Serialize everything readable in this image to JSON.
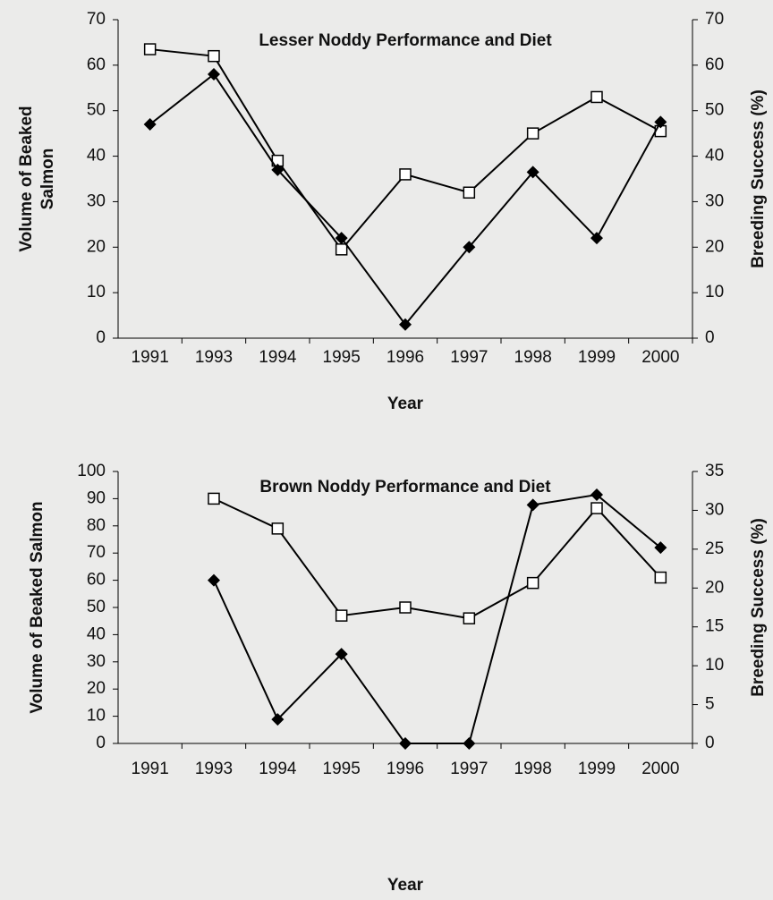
{
  "chart_data": [
    {
      "type": "line",
      "title": "Lesser Noddy Performance and Diet",
      "categories": [
        "1991",
        "1993",
        "1994",
        "1995",
        "1996",
        "1997",
        "1998",
        "1999",
        "2000"
      ],
      "xlabel": "Year",
      "ylabel": [
        "Volume of Beaked",
        "Salmon"
      ],
      "y2label": "Breeding Success (%)",
      "ylim": [
        0,
        70
      ],
      "yticks": [
        0,
        10,
        20,
        30,
        40,
        50,
        60,
        70
      ],
      "y2lim": [
        0,
        70
      ],
      "y2ticks": [
        0,
        10,
        20,
        30,
        40,
        50,
        60,
        70
      ],
      "series": [
        {
          "color": "#000000",
          "marker": "square",
          "values": [
            63.5,
            62,
            39,
            19.5,
            36,
            32,
            45,
            53,
            45.5
          ]
        },
        {
          "color": "#000000",
          "marker": "diamond",
          "axis": "y2",
          "values": [
            47,
            58,
            37,
            22,
            3,
            20,
            36.5,
            22,
            47.5
          ]
        }
      ]
    },
    {
      "type": "line",
      "title": "Brown Noddy Performance and Diet",
      "categories": [
        "1991",
        "1993",
        "1994",
        "1995",
        "1996",
        "1997",
        "1998",
        "1999",
        "2000"
      ],
      "xlabel": "Year",
      "ylabel": [
        "Volume of Beaked Salmon"
      ],
      "y2label": "Breeding Success (%)",
      "ylim": [
        0,
        100
      ],
      "yticks": [
        0,
        10,
        20,
        30,
        40,
        50,
        60,
        70,
        80,
        90,
        100
      ],
      "y2lim": [
        0,
        35
      ],
      "y2ticks": [
        0,
        5,
        10,
        15,
        20,
        25,
        30,
        35
      ],
      "series": [
        {
          "color": "#000000",
          "marker": "square",
          "values": [
            null,
            90,
            79,
            47,
            50,
            46,
            59,
            86.5,
            61
          ]
        },
        {
          "color": "#000000",
          "marker": "diamond",
          "axis": "y2",
          "values": [
            null,
            21,
            3.1,
            11.5,
            0,
            0,
            30.7,
            32,
            25.2
          ]
        }
      ]
    }
  ]
}
